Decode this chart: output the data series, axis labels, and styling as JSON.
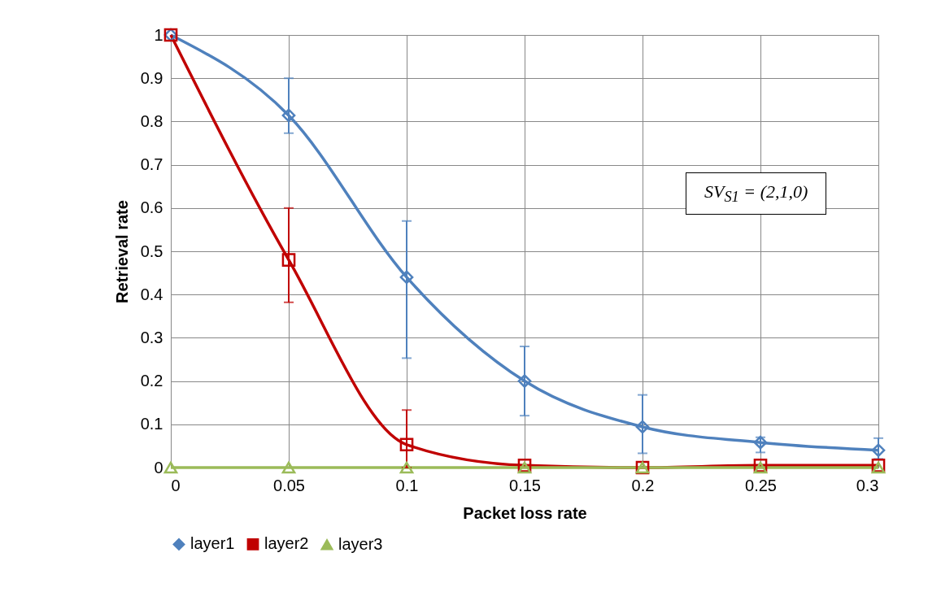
{
  "chart_data": {
    "type": "line",
    "xlabel": "Packet loss rate",
    "ylabel": "Retrieval rate",
    "x": [
      0,
      0.05,
      0.1,
      0.15,
      0.2,
      0.25,
      0.3
    ],
    "series": [
      {
        "name": "layer1",
        "color": "#4f81bd",
        "marker": "diamond",
        "values": [
          1,
          0.814,
          0.44,
          0.2,
          0.094,
          0.058,
          0.04
        ],
        "errors": [
          null,
          [
            0.773,
            0.9
          ],
          [
            0.253,
            0.57
          ],
          [
            0.12,
            0.28
          ],
          [
            0.033,
            0.168
          ],
          [
            0.035,
            0.07
          ],
          [
            0.02,
            0.068
          ]
        ]
      },
      {
        "name": "layer2",
        "color": "#c00000",
        "marker": "square",
        "values": [
          1,
          0.48,
          0.053,
          0.005,
          0,
          0.005,
          0.005
        ],
        "errors": [
          null,
          [
            0.382,
            0.6
          ],
          [
            0,
            0.133
          ],
          null,
          null,
          null,
          null
        ]
      },
      {
        "name": "layer3",
        "color": "#9bbb59",
        "marker": "triangle",
        "values": [
          0,
          0,
          0,
          0,
          0,
          0,
          0
        ]
      }
    ],
    "xlim": [
      0,
      0.3
    ],
    "xticks": [
      0,
      0.05,
      0.1,
      0.15,
      0.2,
      0.25,
      0.3
    ],
    "ylim": [
      0,
      1
    ],
    "yticks": [
      0,
      0.1,
      0.2,
      0.3,
      0.4,
      0.5,
      0.6,
      0.7,
      0.8,
      0.9,
      1
    ],
    "grid": true,
    "legend": "bottom",
    "line_style": "solid",
    "annotations": [
      "SV$_{S1}$ = (2,1,0)"
    ]
  }
}
